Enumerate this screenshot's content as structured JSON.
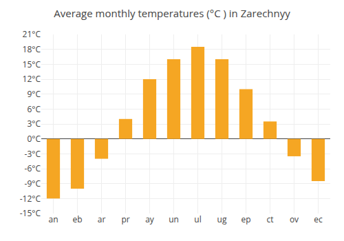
{
  "chart_data": {
    "type": "bar",
    "title": "Average monthly temperatures (°C ) in Zarechnyy",
    "categories": [
      "an",
      "eb",
      "ar",
      "pr",
      "ay",
      "un",
      "ul",
      "ug",
      "ep",
      "ct",
      "ov",
      "ec"
    ],
    "values": [
      -12,
      -10,
      -4,
      4,
      12,
      16,
      18.5,
      16,
      10,
      3.5,
      -3.5,
      -8.5
    ],
    "color": "#F5A623",
    "ylim": [
      -15,
      21
    ],
    "yticks": [
      {
        "value": -15,
        "label": "-15°C"
      },
      {
        "value": -12,
        "label": "-12°C"
      },
      {
        "value": -9,
        "label": "-9°C"
      },
      {
        "value": -6,
        "label": "-6°C"
      },
      {
        "value": -3,
        "label": "-3°C"
      },
      {
        "value": 0,
        "label": "0°C"
      },
      {
        "value": 3,
        "label": "3°C"
      },
      {
        "value": 6,
        "label": "6°C"
      },
      {
        "value": 9,
        "label": "9°C"
      },
      {
        "value": 12,
        "label": "12°C"
      },
      {
        "value": 15,
        "label": "15°C"
      },
      {
        "value": 18,
        "label": "18°C"
      },
      {
        "value": 21,
        "label": "21°C"
      }
    ],
    "grid": true
  }
}
